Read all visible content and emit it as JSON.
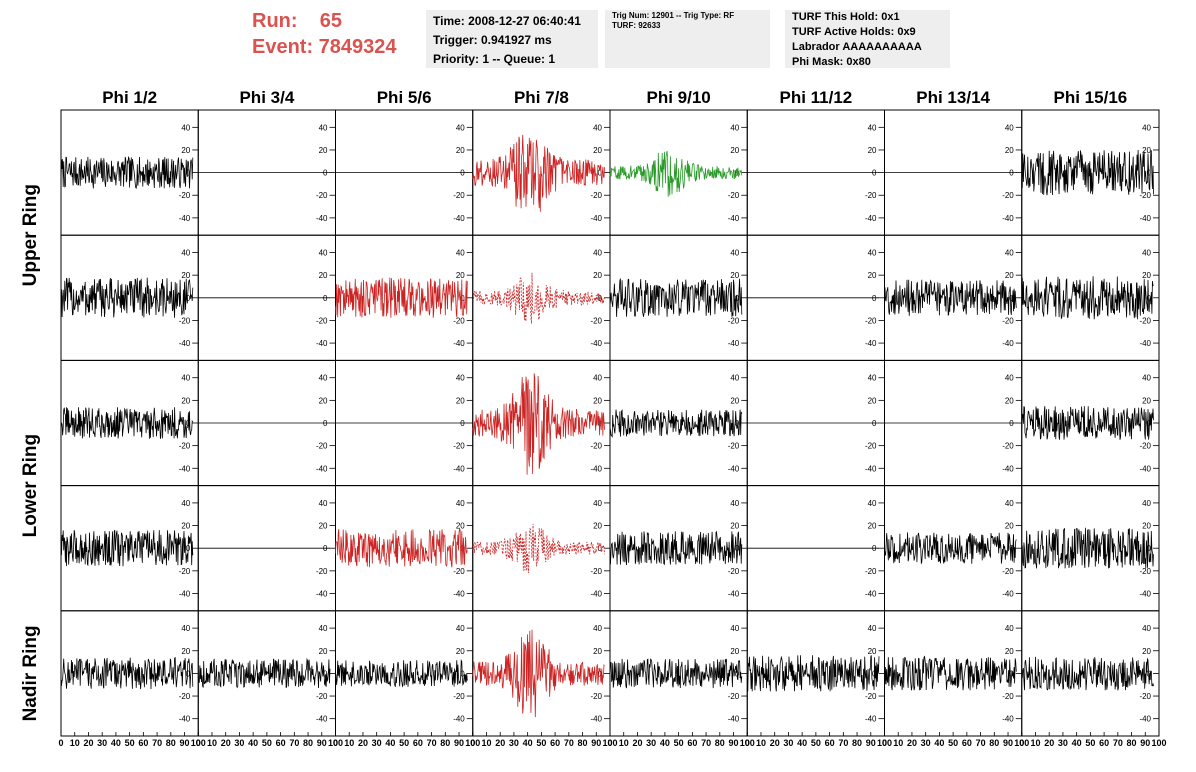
{
  "header": {
    "run_label": "Run:    65",
    "event_label": "Event: 7849324",
    "time_box": [
      "Time: 2008-12-27 06:40:41",
      "Trigger: 0.941927 ms",
      "Priority: 1 -- Queue: 1"
    ],
    "trig_box": [
      "Trig Num: 12901 -- Trig Type: RF",
      "",
      "",
      "TURF: 92633"
    ],
    "turf_box": [
      "TURF This Hold: 0x1",
      "TURF Active Holds: 0x9",
      "Labrador AAAAAAAAAA",
      "Phi Mask: 0x80"
    ]
  },
  "colors": {
    "header_red": "#d9534f",
    "trace_black": "#000000",
    "trace_red": "#cc2222",
    "trace_green": "#2a9a2a",
    "box_bg": "#eeeeee"
  },
  "chart_data": {
    "type": "line",
    "description_kind": "8x5 grid of waveform panels",
    "columns": [
      "Phi 1/2",
      "Phi 3/4",
      "Phi 5/6",
      "Phi 7/8",
      "Phi 9/10",
      "Phi 11/12",
      "Phi 13/14",
      "Phi 15/16"
    ],
    "ring_labels": [
      "Upper Ring",
      "Lower Ring",
      "Nadir Ring"
    ],
    "xlim": [
      0,
      100
    ],
    "ylim": [
      -50,
      50
    ],
    "x_ticks": [
      0,
      10,
      20,
      30,
      40,
      50,
      60,
      70,
      80,
      90,
      100
    ],
    "x_tick_labels": [
      "0",
      "10",
      "20",
      "30",
      "40",
      "50",
      "60",
      "70",
      "80",
      "90",
      "100"
    ],
    "y_ticks": [
      -40,
      -20,
      0,
      20,
      40
    ],
    "y_tick_labels": [
      "-40",
      "-20",
      "0",
      "20",
      "40"
    ],
    "panels": [
      [
        {
          "style": "black",
          "amp": 14,
          "shape": "flat"
        },
        {
          "style": "black",
          "amp": 0,
          "shape": "zero"
        },
        {
          "style": "black",
          "amp": 0,
          "shape": "zero"
        },
        {
          "style": "red",
          "amp": 26,
          "shape": "burst"
        },
        {
          "style": "green",
          "amp": 13,
          "shape": "burst"
        },
        {
          "style": "black",
          "amp": 0,
          "shape": "zero"
        },
        {
          "style": "black",
          "amp": 0,
          "shape": "zero"
        },
        {
          "style": "black",
          "amp": 20,
          "shape": "flat"
        }
      ],
      [
        {
          "style": "black",
          "amp": 18,
          "shape": "flat"
        },
        {
          "style": "black",
          "amp": 0,
          "shape": "zero"
        },
        {
          "style": "red",
          "amp": 18,
          "shape": "flat"
        },
        {
          "style": "red-dashed",
          "amp": 14,
          "shape": "burst"
        },
        {
          "style": "black",
          "amp": 17,
          "shape": "flat"
        },
        {
          "style": "black",
          "amp": 0,
          "shape": "zero"
        },
        {
          "style": "black",
          "amp": 16,
          "shape": "flat"
        },
        {
          "style": "black",
          "amp": 19,
          "shape": "flat"
        }
      ],
      [
        {
          "style": "black",
          "amp": 14,
          "shape": "flat"
        },
        {
          "style": "black",
          "amp": 0,
          "shape": "zero"
        },
        {
          "style": "black",
          "amp": 0,
          "shape": "zero"
        },
        {
          "style": "red",
          "amp": 28,
          "shape": "burst"
        },
        {
          "style": "black",
          "amp": 12,
          "shape": "flat"
        },
        {
          "style": "black",
          "amp": 0,
          "shape": "zero"
        },
        {
          "style": "black",
          "amp": 0,
          "shape": "zero"
        },
        {
          "style": "black",
          "amp": 15,
          "shape": "flat"
        }
      ],
      [
        {
          "style": "black",
          "amp": 16,
          "shape": "flat"
        },
        {
          "style": "black",
          "amp": 0,
          "shape": "zero"
        },
        {
          "style": "red",
          "amp": 17,
          "shape": "flat"
        },
        {
          "style": "red-dashed",
          "amp": 13,
          "shape": "burst"
        },
        {
          "style": "black",
          "amp": 15,
          "shape": "flat"
        },
        {
          "style": "black",
          "amp": 0,
          "shape": "zero"
        },
        {
          "style": "black",
          "amp": 14,
          "shape": "flat"
        },
        {
          "style": "black",
          "amp": 18,
          "shape": "flat"
        }
      ],
      [
        {
          "style": "black",
          "amp": 14,
          "shape": "flat"
        },
        {
          "style": "black",
          "amp": 13,
          "shape": "flat"
        },
        {
          "style": "black",
          "amp": 12,
          "shape": "flat"
        },
        {
          "style": "red",
          "amp": 24,
          "shape": "burst"
        },
        {
          "style": "black",
          "amp": 13,
          "shape": "flat"
        },
        {
          "style": "black",
          "amp": 16,
          "shape": "flat"
        },
        {
          "style": "black",
          "amp": 15,
          "shape": "flat"
        },
        {
          "style": "black",
          "amp": 15,
          "shape": "flat"
        }
      ]
    ]
  }
}
